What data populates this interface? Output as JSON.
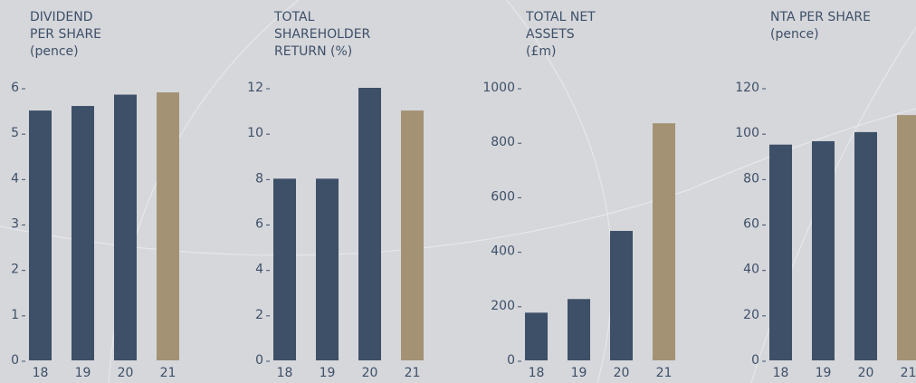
{
  "chart_data": [
    {
      "type": "bar",
      "title": [
        "DIVIDEND",
        "PER SHARE",
        "(pence)"
      ],
      "categories": [
        "18",
        "19",
        "20",
        "21"
      ],
      "values": [
        5.5,
        5.6,
        5.85,
        5.9
      ],
      "colors": [
        "#3d5068",
        "#3d5068",
        "#3d5068",
        "#a39274"
      ],
      "ylim": [
        0,
        6
      ],
      "yticks": [
        0,
        1,
        2,
        3,
        4,
        5,
        6
      ]
    },
    {
      "type": "bar",
      "title": [
        "TOTAL",
        "SHAREHOLDER",
        "RETURN (%)"
      ],
      "categories": [
        "18",
        "19",
        "20",
        "21"
      ],
      "values": [
        8,
        8,
        12,
        11
      ],
      "colors": [
        "#3d5068",
        "#3d5068",
        "#3d5068",
        "#a39274"
      ],
      "ylim": [
        0,
        12
      ],
      "yticks": [
        0,
        2,
        4,
        6,
        8,
        10,
        12
      ]
    },
    {
      "type": "bar",
      "title": [
        "TOTAL NET",
        "ASSETS",
        "(£m)"
      ],
      "categories": [
        "18",
        "19",
        "20",
        "21"
      ],
      "values": [
        175,
        225,
        475,
        870
      ],
      "colors": [
        "#3d5068",
        "#3d5068",
        "#3d5068",
        "#a39274"
      ],
      "ylim": [
        0,
        1000
      ],
      "yticks": [
        0,
        200,
        400,
        600,
        800,
        1000
      ]
    },
    {
      "type": "bar",
      "title": [
        "NTA PER SHARE",
        "(pence)"
      ],
      "categories": [
        "18",
        "19",
        "20",
        "21"
      ],
      "values": [
        95,
        96.5,
        100.5,
        108
      ],
      "colors": [
        "#3d5068",
        "#3d5068",
        "#3d5068",
        "#a39274"
      ],
      "ylim": [
        0,
        120
      ],
      "yticks": [
        0,
        20,
        40,
        60,
        80,
        100,
        120
      ]
    }
  ]
}
